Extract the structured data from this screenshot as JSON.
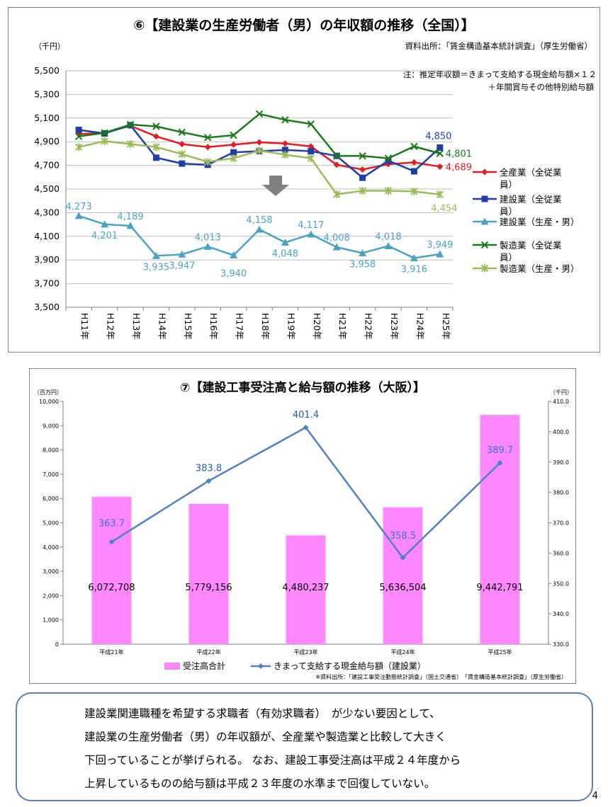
{
  "chart_data": [
    {
      "type": "line",
      "title": "⑥【建設業の生産労働者（男）の年収額の推移（全国）】",
      "ylabel": "（千円）",
      "source": "資料出所：「賃金構造基本統計調査」（厚生労働省）",
      "note_line1": "注：推定年収額＝きまって支給する現金給与額×１２",
      "note_line2": "＋年間賞与その他特別給与額",
      "ylim": [
        3500,
        5500
      ],
      "yticks": [
        "3,500",
        "3,700",
        "3,900",
        "4,100",
        "4,300",
        "4,500",
        "4,700",
        "4,900",
        "5,100",
        "5,300",
        "5,500"
      ],
      "categories": [
        "H11年",
        "H12年",
        "H13年",
        "H14年",
        "H15年",
        "H16年",
        "H17年",
        "H18年",
        "H19年",
        "H20年",
        "H21年",
        "H22年",
        "H23年",
        "H24年",
        "H25年"
      ],
      "grid": true,
      "legend_position": "right",
      "series": [
        {
          "name": "全産業（全従業員）",
          "color": "#e31b23",
          "marker": "diamond",
          "values": [
            4965,
            4975,
            5035,
            4945,
            4880,
            4855,
            4875,
            4895,
            4885,
            4860,
            4705,
            4665,
            4710,
            4725,
            4689
          ]
        },
        {
          "name": "建設業（全従業員）",
          "color": "#1f3ea8",
          "marker": "square",
          "values": [
            5000,
            4970,
            5040,
            4765,
            4715,
            4705,
            4810,
            4820,
            4830,
            4820,
            4780,
            4595,
            4740,
            4650,
            4850
          ]
        },
        {
          "name": "建設業（生産・男）",
          "color": "#4ba3c3",
          "marker": "triangle",
          "values": [
            4273,
            4201,
            4189,
            3935,
            3947,
            4013,
            3940,
            4158,
            4048,
            4117,
            4008,
            3958,
            4018,
            3916,
            3949
          ]
        },
        {
          "name": "製造業（全従業員）",
          "color": "#1a7a1a",
          "marker": "x",
          "values": [
            4945,
            4975,
            5045,
            5030,
            4980,
            4935,
            4955,
            5135,
            5085,
            5050,
            4780,
            4780,
            4760,
            4860,
            4801
          ]
        },
        {
          "name": "製造業（生産・男）",
          "color": "#9bbb59",
          "marker": "star",
          "values": [
            4855,
            4905,
            4880,
            4855,
            4795,
            4730,
            4760,
            4825,
            4790,
            4760,
            4455,
            4485,
            4485,
            4480,
            4454
          ]
        }
      ],
      "value_labels": [
        {
          "series": 2,
          "index": 0,
          "text": "4,273",
          "pos": "above"
        },
        {
          "series": 2,
          "index": 1,
          "text": "4,201",
          "pos": "below"
        },
        {
          "series": 2,
          "index": 2,
          "text": "4,189",
          "pos": "above"
        },
        {
          "series": 2,
          "index": 3,
          "text": "3,935",
          "pos": "below"
        },
        {
          "series": 2,
          "index": 4,
          "text": "3,947",
          "pos": "below"
        },
        {
          "series": 2,
          "index": 5,
          "text": "4,013",
          "pos": "above"
        },
        {
          "series": 2,
          "index": 6,
          "text": "3,940",
          "pos": "below2"
        },
        {
          "series": 2,
          "index": 7,
          "text": "4,158",
          "pos": "above"
        },
        {
          "series": 2,
          "index": 8,
          "text": "4,048",
          "pos": "below"
        },
        {
          "series": 2,
          "index": 9,
          "text": "4,117",
          "pos": "above"
        },
        {
          "series": 2,
          "index": 10,
          "text": "4,008",
          "pos": "above"
        },
        {
          "series": 2,
          "index": 11,
          "text": "3,958",
          "pos": "below"
        },
        {
          "series": 2,
          "index": 12,
          "text": "4,018",
          "pos": "above"
        },
        {
          "series": 2,
          "index": 13,
          "text": "3,916",
          "pos": "below"
        },
        {
          "series": 2,
          "index": 14,
          "text": "3,949",
          "pos": "above"
        },
        {
          "series": 1,
          "index": 14,
          "text": "4,850",
          "pos": "above"
        },
        {
          "series": 3,
          "index": 14,
          "text": "4,801",
          "pos": "right"
        },
        {
          "series": 0,
          "index": 14,
          "text": "4,689",
          "pos": "right"
        },
        {
          "series": 4,
          "index": 14,
          "text": "4,454",
          "pos": "below"
        }
      ]
    },
    {
      "type": "bar+line",
      "title": "⑦【建設工事受注高と給与額の推移（大阪）】",
      "ylabel_left": "（百万円）",
      "ylabel_right": "（千円）",
      "source": "※資料出所：「建設工事受注動態統計調査」（国土交通省）　「賃金構造基本統計調査」（厚生労働省）",
      "categories": [
        "平成21年",
        "平成22年",
        "平成23年",
        "平成24年",
        "平成25年"
      ],
      "ylim_left": [
        0,
        10000
      ],
      "yticks_left": [
        "0",
        "1,000",
        "2,000",
        "3,000",
        "4,000",
        "5,000",
        "6,000",
        "7,000",
        "8,000",
        "9,000",
        "10,000"
      ],
      "ylim_right": [
        330,
        410
      ],
      "yticks_right": [
        "330.0",
        "340.0",
        "350.0",
        "360.0",
        "370.0",
        "380.0",
        "390.0",
        "400.0",
        "410.0"
      ],
      "legend_position": "bottom",
      "bar_series": {
        "name": "受注高合計",
        "color": "#ff88ff",
        "values": [
          6072708,
          5779156,
          4480237,
          5636504,
          9442791
        ],
        "labels": [
          "6,072,708",
          "5,779,156",
          "4,480,237",
          "5,636,504",
          "9,442,791"
        ]
      },
      "line_series": {
        "name": "きまって支給する現金給与額（建設業）",
        "color": "#4f81bd",
        "values": [
          363.7,
          383.8,
          401.4,
          358.5,
          389.7
        ],
        "labels": [
          "363.7",
          "383.8",
          "401.4",
          "358.5",
          "389.7"
        ]
      }
    }
  ],
  "summary": {
    "line1": "建設業関連職種を希望する求職者（有効求職者）　が少ない要因として、",
    "line2": "建設業の生産労働者（男）の年収額が、全産業や製造業と比較して大きく",
    "line3": "下回っていることが挙げられる。 なお、建設工事受注高は平成２４年度から",
    "line4": "上昇しているものの給与額は平成２３年度の水準まで回復していない。"
  },
  "page_number": "4"
}
